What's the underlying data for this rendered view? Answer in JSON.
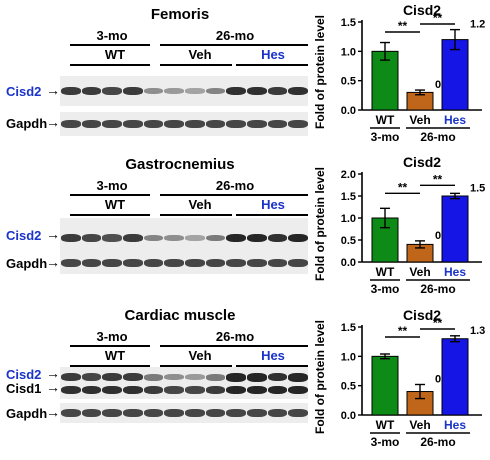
{
  "panels": [
    {
      "title": "Femoris",
      "age_young": "3-mo",
      "age_old": "26-mo",
      "groups": [
        "WT",
        "Veh",
        "Hes"
      ],
      "labels": [
        "Cisd2",
        "Gapdh"
      ],
      "arrow": "→"
    },
    {
      "title": "Gastrocnemius",
      "age_young": "3-mo",
      "age_old": "26-mo",
      "groups": [
        "WT",
        "Veh",
        "Hes"
      ],
      "labels": [
        "Cisd2",
        "Gapdh"
      ],
      "arrow": "→"
    },
    {
      "title": "Cardiac muscle",
      "age_young": "3-mo",
      "age_old": "26-mo",
      "groups": [
        "WT",
        "Veh",
        "Hes"
      ],
      "labels": [
        "Cisd2",
        "Cisd1",
        "Gapdh"
      ],
      "arrow": "→"
    }
  ],
  "chart_data": [
    {
      "type": "bar",
      "title": "Cisd2",
      "ylabel": "Fold of protein level",
      "categories": [
        "WT",
        "Veh",
        "Hes"
      ],
      "group_labels": [
        "3-mo",
        "26-mo"
      ],
      "values": [
        1.0,
        0.3,
        1.2
      ],
      "errors": [
        0.15,
        0.04,
        0.17
      ],
      "value_labels": [
        "",
        "0.3",
        "1.2"
      ],
      "significance": [
        "**",
        "**"
      ],
      "ylim": [
        0,
        1.5
      ],
      "yticks": [
        "0.0",
        "0.5",
        "1.0",
        "1.5"
      ],
      "colors": [
        "#0e8a16",
        "#c0661a",
        "#1515e6"
      ]
    },
    {
      "type": "bar",
      "title": "Cisd2",
      "ylabel": "Fold of protein level",
      "categories": [
        "WT",
        "Veh",
        "Hes"
      ],
      "group_labels": [
        "3-mo",
        "26-mo"
      ],
      "values": [
        1.0,
        0.4,
        1.5
      ],
      "errors": [
        0.22,
        0.08,
        0.06
      ],
      "value_labels": [
        "",
        "0.4",
        "1.5"
      ],
      "significance": [
        "**",
        "**"
      ],
      "ylim": [
        0,
        2.0
      ],
      "yticks": [
        "0.0",
        "0.5",
        "1.0",
        "1.5",
        "2.0"
      ],
      "colors": [
        "#0e8a16",
        "#c0661a",
        "#1515e6"
      ]
    },
    {
      "type": "bar",
      "title": "Cisd2",
      "ylabel": "Fold of protein level",
      "categories": [
        "WT",
        "Veh",
        "Hes"
      ],
      "group_labels": [
        "3-mo",
        "26-mo"
      ],
      "values": [
        1.0,
        0.4,
        1.3
      ],
      "errors": [
        0.04,
        0.12,
        0.05
      ],
      "value_labels": [
        "",
        "0.4",
        "1.3"
      ],
      "significance": [
        "**",
        "**"
      ],
      "ylim": [
        0,
        1.5
      ],
      "yticks": [
        "0.0",
        "0.5",
        "1.0",
        "1.5"
      ],
      "colors": [
        "#0e8a16",
        "#c0661a",
        "#1515e6"
      ]
    }
  ],
  "band_intensity": [
    {
      "Cisd2": [
        0.85,
        0.85,
        0.8,
        0.85,
        0.45,
        0.4,
        0.35,
        0.5,
        0.9,
        0.9,
        0.85,
        0.9
      ],
      "Gapdh": [
        0.8,
        0.8,
        0.8,
        0.8,
        0.8,
        0.8,
        0.8,
        0.8,
        0.8,
        0.8,
        0.8,
        0.8
      ]
    },
    {
      "Cisd2": [
        0.85,
        0.8,
        0.75,
        0.85,
        0.5,
        0.45,
        0.35,
        0.55,
        0.95,
        0.95,
        0.9,
        0.95
      ],
      "Gapdh": [
        0.8,
        0.8,
        0.8,
        0.8,
        0.8,
        0.8,
        0.8,
        0.8,
        0.8,
        0.8,
        0.8,
        0.8
      ]
    },
    {
      "Cisd2": [
        0.85,
        0.8,
        0.85,
        0.85,
        0.55,
        0.45,
        0.4,
        0.55,
        0.95,
        0.95,
        0.9,
        0.95
      ],
      "Cisd1": [
        0.9,
        0.9,
        0.9,
        0.9,
        0.85,
        0.8,
        0.8,
        0.85,
        0.95,
        0.95,
        0.95,
        0.95
      ],
      "Gapdh": [
        0.8,
        0.8,
        0.8,
        0.8,
        0.8,
        0.8,
        0.8,
        0.8,
        0.8,
        0.8,
        0.8,
        0.8
      ]
    }
  ]
}
